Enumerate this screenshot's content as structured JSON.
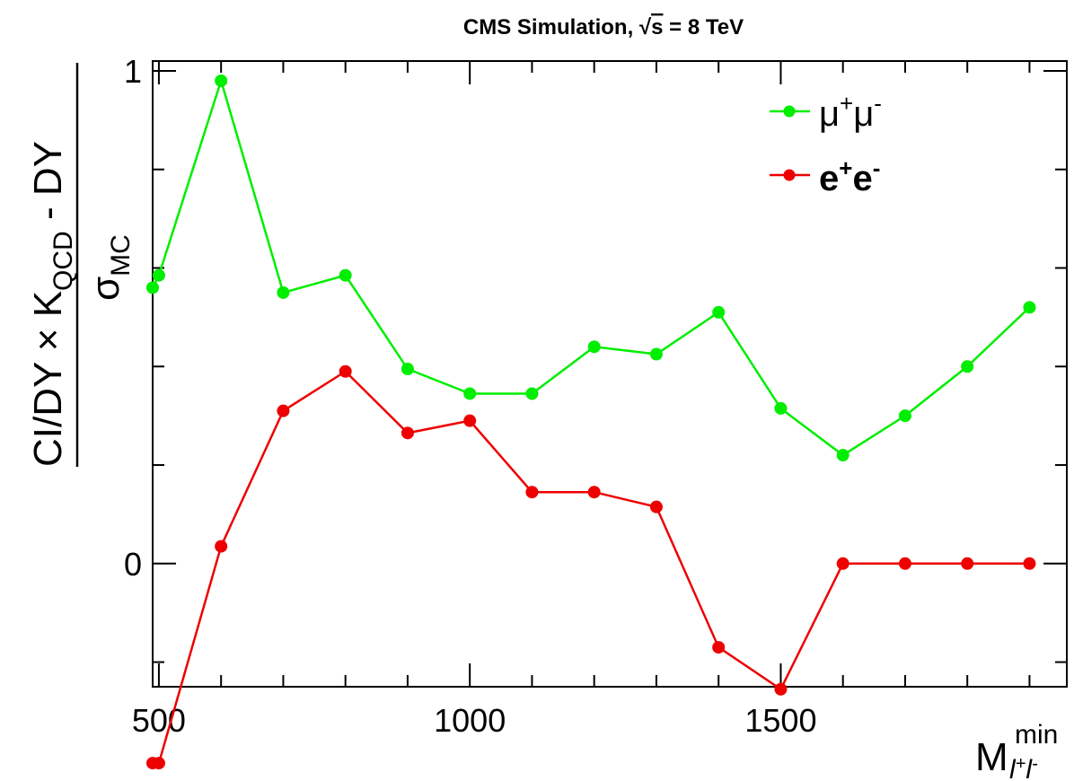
{
  "chart_data": {
    "type": "line",
    "title": {
      "prefix": "CMS Simulation, ",
      "sqrt": "√",
      "s": "s",
      "suffix": " = 8 TeV"
    },
    "xlabel": {
      "main": "M",
      "sup": "min",
      "sub_l1": "l",
      "sub_plus": "+",
      "sub_l2": "l",
      "sub_minus": "-"
    },
    "ylabel": {
      "numerator": {
        "pre": "CI/DY × K",
        "sub": "QCD",
        "post": " - DY"
      },
      "denominator": {
        "main": "σ",
        "sub": "MC"
      }
    },
    "xlim": [
      490,
      1960
    ],
    "ylim": [
      -0.25,
      1.02
    ],
    "x_ticks": [
      500,
      1000,
      1500
    ],
    "y_ticks": [
      0,
      1
    ],
    "x": [
      500,
      600,
      700,
      800,
      900,
      1000,
      1100,
      1200,
      1300,
      1400,
      1500,
      1600,
      1700,
      1800,
      1900
    ],
    "series": [
      {
        "name": {
          "main": "μ",
          "sup1": "+",
          "main2": "μ",
          "sup2": "-"
        },
        "color": "#00ee00",
        "values": [
          0.585,
          0.98,
          0.55,
          0.585,
          0.395,
          0.345,
          0.345,
          0.44,
          0.425,
          0.51,
          0.315,
          0.22,
          0.3,
          0.4,
          0.52
        ],
        "extra_left": {
          "x": 490,
          "y": 0.56
        }
      },
      {
        "name": {
          "main": "e",
          "sup1": "+",
          "main2": "e",
          "sup2": "-"
        },
        "color": "#ee0000",
        "values": [
          -0.405,
          0.035,
          0.31,
          0.39,
          0.265,
          0.29,
          0.145,
          0.145,
          0.115,
          -0.17,
          -0.255,
          0.0,
          0.0,
          0.0,
          0.0
        ],
        "extra_left": {
          "x": 490,
          "y": -0.405
        }
      }
    ],
    "legend_position": "top-right",
    "grid": false
  }
}
